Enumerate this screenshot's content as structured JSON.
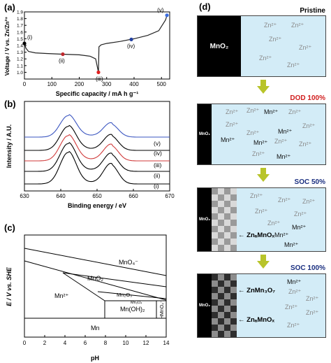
{
  "panels": {
    "a": {
      "letter": "(a)",
      "ylabel": "Voltage / V vs. Zn/Zn²⁺",
      "xlabel": "Specific capacity / mA h g⁻¹",
      "points": [
        "(i)",
        "(ii)",
        "(iii)",
        "(iv)",
        "(v)"
      ]
    },
    "b": {
      "letter": "(b)",
      "ylabel": "Intensity / A.U.",
      "xlabel": "Binding energy / eV",
      "series_labels": [
        "(v)",
        "(iv)",
        "(iii)",
        "(ii)",
        "(i)"
      ]
    },
    "c": {
      "letter": "(c)",
      "ylabel": "E / V vs. SHE",
      "xlabel": "pH",
      "regions": [
        "MnO₄⁻",
        "MnO₂",
        "Mn₂O₃",
        "Mn₃O₄",
        "Mn²⁺",
        "Mn(OH)₂",
        "HMnO₂⁻",
        "Mn"
      ]
    },
    "d": {
      "letter": "(d)",
      "states": [
        {
          "label": "Pristine",
          "color": "#000000"
        },
        {
          "label": "DOD 100%",
          "color": "#d11e1e"
        },
        {
          "label": "SOC 50%",
          "color": "#1a2f80"
        },
        {
          "label": "SOC 100%",
          "color": "#1a2f80"
        }
      ],
      "mno2": "MnO₂",
      "mno2_small": "MnO₂",
      "zn_ion": "Zn²⁺",
      "mn_ion": "Mn²⁺",
      "annot_znamnox": "ZnₐMnOₓ",
      "annot_znmn3o7": "ZnMn₃O₇"
    }
  },
  "chart_data": [
    {
      "type": "line",
      "panel": "a",
      "xlabel": "Specific capacity / mA h g⁻¹",
      "ylabel": "Voltage / V vs. Zn/Zn²⁺",
      "xlim": [
        0,
        530
      ],
      "ylim": [
        0.9,
        1.9
      ],
      "xticks": [
        0,
        100,
        200,
        300,
        400,
        500
      ],
      "yticks": [
        1.0,
        1.1,
        1.2,
        1.3,
        1.4,
        1.5,
        1.6,
        1.7,
        1.8,
        1.9
      ],
      "series": [
        {
          "x": [
            0,
            5,
            15,
            40,
            80,
            140,
            200,
            240,
            260,
            270
          ],
          "y": [
            1.44,
            1.36,
            1.31,
            1.29,
            1.28,
            1.27,
            1.26,
            1.24,
            1.2,
            1.0
          ]
        },
        {
          "x": [
            270,
            272,
            280,
            300,
            350,
            400,
            450,
            490,
            515,
            520
          ],
          "y": [
            1.0,
            1.38,
            1.41,
            1.43,
            1.46,
            1.5,
            1.55,
            1.62,
            1.78,
            1.85
          ]
        }
      ],
      "markers": [
        {
          "label": "(i)",
          "x": 0,
          "y": 1.43,
          "color": "#000000"
        },
        {
          "label": "(ii)",
          "x": 140,
          "y": 1.27,
          "color": "#c0282d"
        },
        {
          "label": "(iii)",
          "x": 270,
          "y": 1.0,
          "color": "#e02020"
        },
        {
          "label": "(iv)",
          "x": 390,
          "y": 1.49,
          "color": "#2340a0"
        },
        {
          "label": "(v)",
          "x": 520,
          "y": 1.85,
          "color": "#3a6de0"
        }
      ]
    },
    {
      "type": "line",
      "panel": "b",
      "xlabel": "Binding energy / eV",
      "ylabel": "Intensity / A.U.",
      "xlim": [
        630,
        670
      ],
      "xticks": [
        630,
        640,
        650,
        660,
        670
      ],
      "peaks": [
        642.0,
        653.8
      ],
      "series": [
        {
          "name": "(i)",
          "color": "#000000"
        },
        {
          "name": "(ii)",
          "color": "#000000"
        },
        {
          "name": "(iii)",
          "color": "#d03a3a"
        },
        {
          "name": "(iv)",
          "color": "#000000"
        },
        {
          "name": "(v)",
          "color": "#3a55c0"
        }
      ]
    },
    {
      "type": "area",
      "panel": "c",
      "xlabel": "pH",
      "ylabel": "E / V vs. SHE",
      "xlim": [
        0,
        14
      ],
      "xticks": [
        0,
        2,
        4,
        6,
        8,
        10,
        12,
        14
      ]
    }
  ]
}
